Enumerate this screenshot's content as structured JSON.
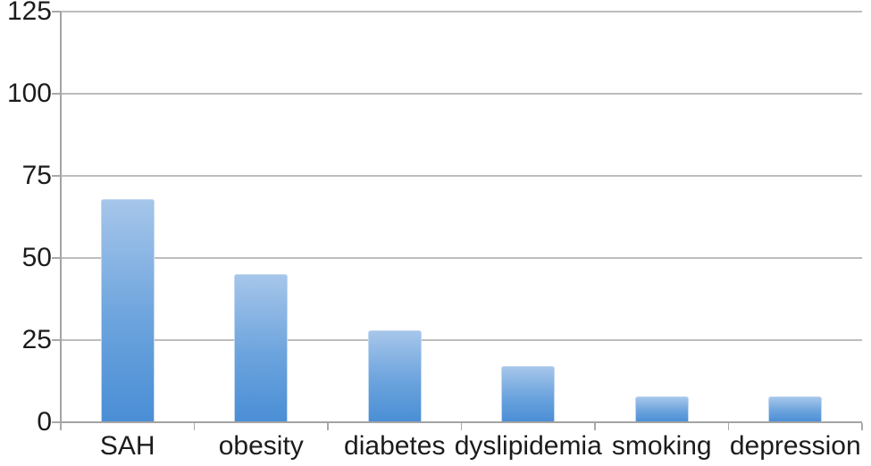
{
  "chart_data": {
    "type": "bar",
    "title": "",
    "xlabel": "",
    "ylabel": "",
    "categories": [
      "SAH",
      "obesity",
      "diabetes",
      "dyslipidemia",
      "smoking",
      "depression"
    ],
    "values": [
      68,
      45,
      28,
      17,
      8,
      8
    ],
    "ylim": [
      0,
      125
    ],
    "yticks": [
      0,
      25,
      50,
      75,
      100,
      125
    ],
    "grid": "horizontal-only",
    "legend": "none",
    "colors": {
      "bar_gradient_top": "#a6c6ea",
      "bar_gradient_bottom": "#4a8ed5",
      "bar_border": "#c2d8f0",
      "gridline": "#bdbdbd",
      "axis": "#a3a3a3",
      "text": "#1c1c1c",
      "background": "#ffffff"
    }
  }
}
